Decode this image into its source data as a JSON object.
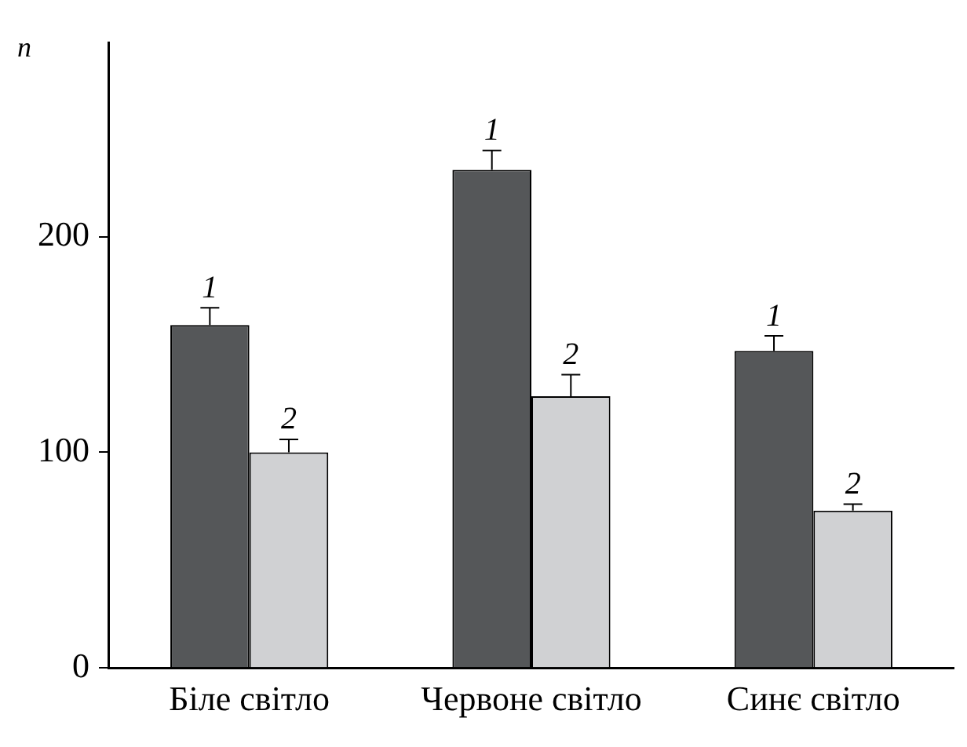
{
  "chart_data": {
    "type": "bar",
    "ylabel": "n",
    "categories": [
      "Біле світло",
      "Червоне світло",
      "Синє світло"
    ],
    "series": [
      {
        "name": "1",
        "color": "#555759",
        "values": [
          159,
          231,
          147
        ],
        "errors": [
          8,
          9,
          7
        ]
      },
      {
        "name": "2",
        "color": "#d0d1d3",
        "values": [
          100,
          126,
          73
        ],
        "errors": [
          6,
          10,
          3
        ]
      }
    ],
    "ylim": [
      0,
      290
    ],
    "yticks": [
      0,
      100,
      200
    ],
    "grid": false,
    "legend": false
  }
}
